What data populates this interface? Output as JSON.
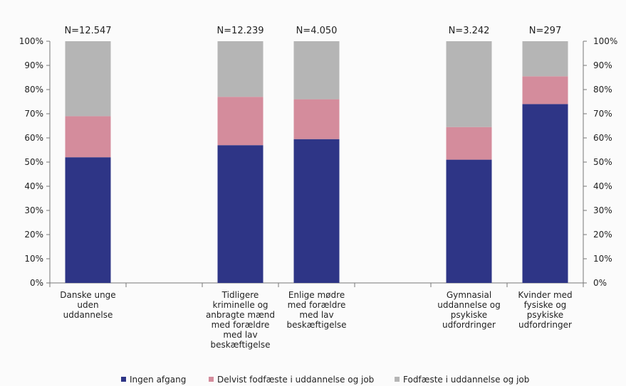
{
  "chart_data": {
    "type": "bar",
    "stacked": true,
    "categories": [
      "Danske unge uden uddannelse",
      "",
      "Tidligere kriminelle og anbragte mænd med forældre med lav beskæftigelse",
      "Enlige mødre med forældre med lav beskæftigelse",
      "",
      "Gymnasial uddannelse og psykiske udfordringer",
      "Kvinder med fysiske og psykiske udfordringer"
    ],
    "category_lines": [
      [
        "Danske unge",
        "uden",
        "uddannelse"
      ],
      [],
      [
        "Tidligere",
        "kriminelle og",
        "anbragte mænd",
        "med forældre",
        "med lav",
        "beskæftigelse"
      ],
      [
        "Enlige mødre",
        "med forældre",
        "med lav",
        "beskæftigelse"
      ],
      [],
      [
        "Gymnasial",
        "uddannelse og",
        "psykiske",
        "udfordringer"
      ],
      [
        "Kvinder med",
        "fysiske og",
        "psykiske",
        "udfordringer"
      ]
    ],
    "n_labels": [
      "N=12.547",
      "",
      "N=12.239",
      "N=4.050",
      "",
      "N=3.242",
      "N=297"
    ],
    "series": [
      {
        "name": "Ingen afgang",
        "color": "#2e3586",
        "values": [
          52,
          null,
          57,
          59.5,
          null,
          51,
          74
        ]
      },
      {
        "name": "Delvist fodfæste i uddannelse og job",
        "color": "#d48c9c",
        "values": [
          17,
          null,
          20,
          16.5,
          null,
          13.5,
          11.5
        ]
      },
      {
        "name": "Fodfæste i uddannelse og job",
        "color": "#b5b5b5",
        "values": [
          31,
          null,
          23,
          24,
          null,
          35.5,
          14.5
        ]
      }
    ],
    "y_ticks": [
      "0%",
      "10%",
      "20%",
      "30%",
      "40%",
      "50%",
      "60%",
      "70%",
      "80%",
      "90%",
      "100%"
    ],
    "ylim": [
      0,
      100
    ],
    "secondary_axis": true,
    "legend_position": "bottom",
    "grid": false
  }
}
